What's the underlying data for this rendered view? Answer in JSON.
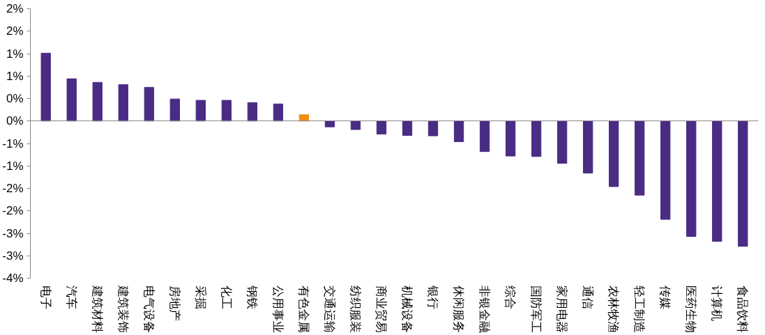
{
  "chart_data": {
    "type": "bar",
    "categories": [
      "电子",
      "汽车",
      "建筑材料",
      "建筑装饰",
      "电气设备",
      "房地产",
      "采掘",
      "化工",
      "钢铁",
      "公用事业",
      "有色金属",
      "交通运输",
      "纺织服装",
      "商业贸易",
      "机械设备",
      "银行",
      "休闲服务",
      "非银金融",
      "综合",
      "国防军工",
      "家用电器",
      "通信",
      "农林牧渔",
      "轻工制造",
      "传媒",
      "医药生物",
      "计算机",
      "食品饮料"
    ],
    "values": [
      1.51,
      0.94,
      0.86,
      0.81,
      0.75,
      0.49,
      0.46,
      0.46,
      0.41,
      0.38,
      0.14,
      -0.13,
      -0.19,
      -0.29,
      -0.32,
      -0.33,
      -0.46,
      -0.68,
      -0.78,
      -0.79,
      -0.94,
      -1.16,
      -1.46,
      -1.65,
      -2.19,
      -2.57,
      -2.68,
      -2.79
    ],
    "colors": [
      "#4b2c84",
      "#4b2c84",
      "#4b2c84",
      "#4b2c84",
      "#4b2c84",
      "#4b2c84",
      "#4b2c84",
      "#4b2c84",
      "#4b2c84",
      "#4b2c84",
      "#f08c10",
      "#4b2c84",
      "#4b2c84",
      "#4b2c84",
      "#4b2c84",
      "#4b2c84",
      "#4b2c84",
      "#4b2c84",
      "#4b2c84",
      "#4b2c84",
      "#4b2c84",
      "#4b2c84",
      "#4b2c84",
      "#4b2c84",
      "#4b2c84",
      "#4b2c84",
      "#4b2c84",
      "#4b2c84"
    ],
    "ylim": [
      -3.5,
      2.5
    ],
    "yticks": [
      {
        "value": 2.5,
        "label": "2%"
      },
      {
        "value": 2.0,
        "label": "2%"
      },
      {
        "value": 1.5,
        "label": "1%"
      },
      {
        "value": 1.0,
        "label": "1%"
      },
      {
        "value": 0.5,
        "label": "0%"
      },
      {
        "value": 0,
        "label": "0%"
      },
      {
        "value": -0.5,
        "label": "-1%"
      },
      {
        "value": -1.0,
        "label": "-1%"
      },
      {
        "value": -1.5,
        "label": "-2%"
      },
      {
        "value": -2.0,
        "label": "-2%"
      },
      {
        "value": -2.5,
        "label": "-3%"
      },
      {
        "value": -3.0,
        "label": "-3%"
      },
      {
        "value": -3.5,
        "label": "-4%"
      }
    ],
    "orientation": "vertical"
  }
}
